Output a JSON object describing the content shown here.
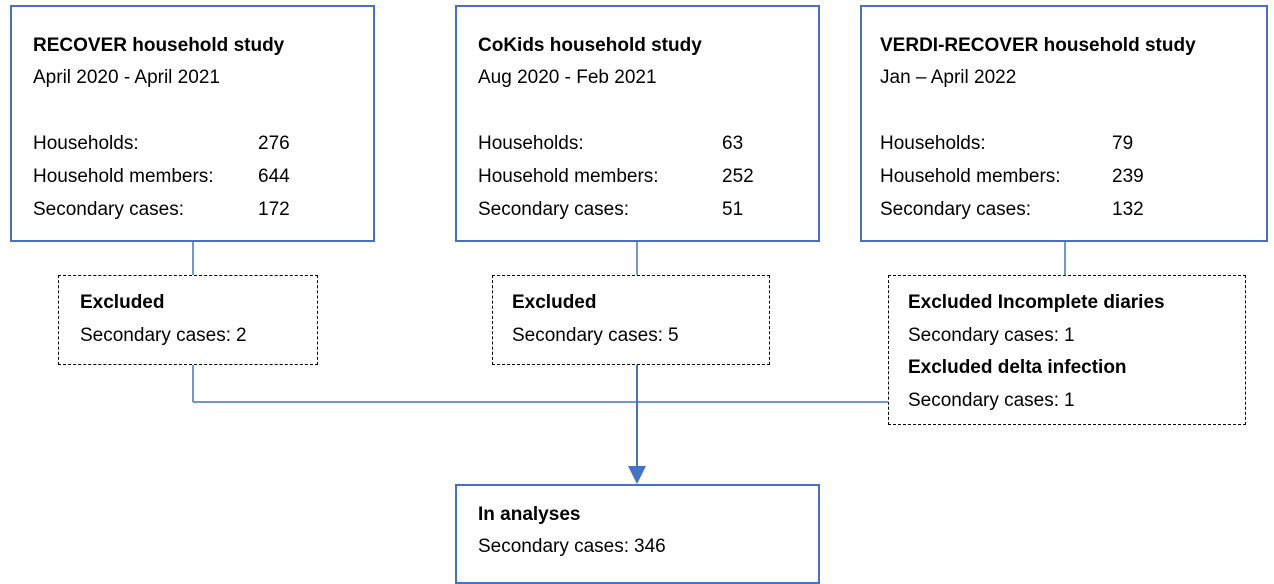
{
  "studies": [
    {
      "title": "RECOVER household study",
      "period": "April 2020 - April 2021",
      "rows": [
        {
          "label": "Households:",
          "value": 276
        },
        {
          "label": "Household members:",
          "value": 644
        },
        {
          "label": "Secondary cases:",
          "value": 172
        }
      ]
    },
    {
      "title": "CoKids household study",
      "period": "Aug 2020 - Feb 2021",
      "rows": [
        {
          "label": "Households:",
          "value": 63
        },
        {
          "label": "Household members:",
          "value": 252
        },
        {
          "label": "Secondary cases:",
          "value": 51
        }
      ]
    },
    {
      "title": "VERDI-RECOVER household study",
      "period": "Jan – April 2022",
      "rows": [
        {
          "label": "Households:",
          "value": 79
        },
        {
          "label": "Household members:",
          "value": 239
        },
        {
          "label": "Secondary cases:",
          "value": 132
        }
      ]
    }
  ],
  "exclusions": [
    {
      "groups": [
        {
          "title": "Excluded",
          "label": "Secondary cases:",
          "value": 2
        }
      ]
    },
    {
      "groups": [
        {
          "title": "Excluded",
          "label": "Secondary cases:",
          "value": 5
        }
      ]
    },
    {
      "groups": [
        {
          "title": "Excluded Incomplete diaries",
          "label": "Secondary cases:",
          "value": 1
        },
        {
          "title": "Excluded delta infection",
          "label": "Secondary cases:",
          "value": 1
        }
      ]
    }
  ],
  "final": {
    "title": "In analyses",
    "label": "Secondary cases:",
    "value": 346
  }
}
